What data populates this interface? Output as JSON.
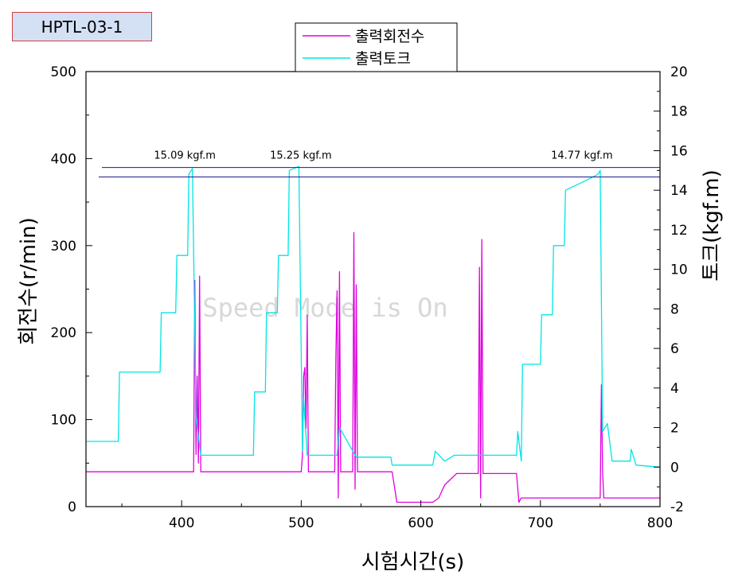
{
  "badge": "HPTL-03-1",
  "watermark": "Speed Mode is On",
  "chart_data": {
    "type": "line",
    "title": "",
    "xlabel": "시험시간(s)",
    "ylabel": "회전수(r/min)",
    "y2label": "토크(kgf.m)",
    "xlim": [
      320,
      800
    ],
    "ylim": [
      0,
      500
    ],
    "y2lim": [
      -2,
      20
    ],
    "x_ticks": [
      400,
      500,
      600,
      700,
      800
    ],
    "y_ticks": [
      0,
      100,
      200,
      300,
      400,
      500
    ],
    "y2_ticks": [
      -2,
      0,
      2,
      4,
      6,
      8,
      10,
      12,
      14,
      16,
      18,
      20
    ],
    "legend_position": "top-center",
    "grid": false,
    "annotations": [
      {
        "text": "15.09 kgf.m",
        "x": 408,
        "y2": 15.6
      },
      {
        "text": "15.25 kgf.m",
        "x": 505,
        "y2": 15.6
      },
      {
        "text": "14.77 kgf.m",
        "x": 740,
        "y2": 15.6
      }
    ],
    "reference_lines_y2": [
      15.15,
      14.67
    ],
    "series": [
      {
        "name": "출력회전수",
        "axis": "left",
        "color": "#e000e0",
        "x": [
          320,
          410,
          411,
          412,
          413,
          414,
          415,
          416,
          500,
          501,
          502,
          503,
          504,
          505,
          506,
          528,
          529,
          530,
          531,
          532,
          533,
          543,
          544,
          545,
          546,
          547,
          576,
          580,
          610,
          615,
          620,
          630,
          648,
          649,
          650,
          651,
          652,
          680,
          682,
          684,
          750,
          751,
          752,
          753,
          754,
          800
        ],
        "y": [
          40,
          40,
          260,
          60,
          150,
          50,
          265,
          40,
          40,
          60,
          150,
          160,
          90,
          220,
          40,
          40,
          175,
          248,
          10,
          270,
          40,
          40,
          315,
          20,
          255,
          40,
          40,
          5,
          5,
          10,
          25,
          38,
          38,
          275,
          10,
          307,
          38,
          38,
          5,
          10,
          10,
          140,
          40,
          10,
          10,
          10
        ]
      },
      {
        "name": "출력토크",
        "axis": "right",
        "color": "#00e5e5",
        "x": [
          320,
          347,
          348,
          382,
          383,
          395,
          396,
          405,
          406,
          409,
          412,
          416,
          420,
          460,
          461,
          470,
          471,
          480,
          481,
          489,
          490,
          498,
          501,
          502,
          505,
          530,
          532,
          546,
          548,
          575,
          576,
          610,
          612,
          620,
          628,
          650,
          680,
          681,
          684,
          685,
          700,
          701,
          710,
          711,
          720,
          721,
          735,
          748,
          750,
          752,
          756,
          760,
          775,
          776,
          780,
          800
        ],
        "y": [
          1.3,
          1.3,
          4.8,
          4.8,
          7.8,
          7.8,
          10.7,
          10.7,
          14.8,
          15.1,
          2.5,
          0.6,
          0.6,
          0.6,
          3.8,
          3.8,
          7.8,
          7.8,
          10.7,
          10.7,
          15.0,
          15.2,
          0.8,
          3.5,
          0.6,
          0.6,
          2.0,
          0.5,
          0.5,
          0.5,
          0.1,
          0.1,
          0.8,
          0.3,
          0.6,
          0.6,
          0.6,
          1.8,
          0.3,
          5.2,
          5.2,
          7.7,
          7.7,
          11.2,
          11.2,
          14.0,
          14.4,
          14.8,
          15.0,
          1.8,
          2.2,
          0.3,
          0.3,
          0.9,
          0.1,
          0.0
        ]
      }
    ]
  }
}
